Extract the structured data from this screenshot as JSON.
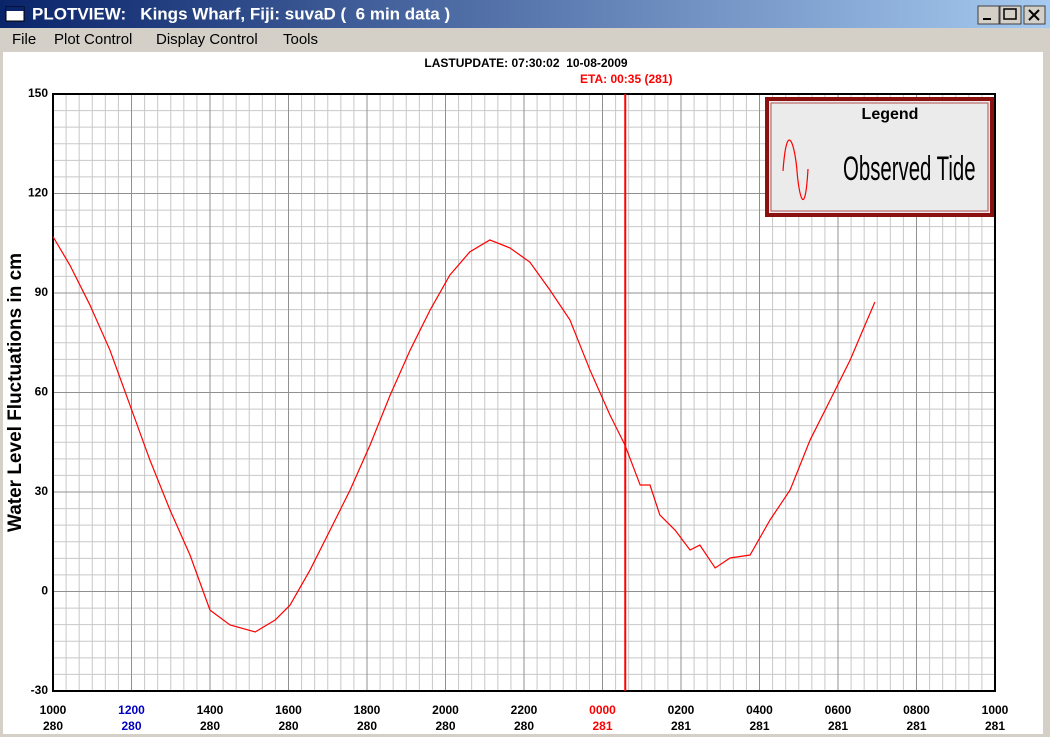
{
  "window": {
    "title": "PLOTVIEW:   Kings Wharf, Fiji: suvaD (  6 min data )"
  },
  "menu": [
    "File",
    "Plot Control",
    "Display Control",
    "Tools"
  ],
  "chart_data": {
    "type": "line",
    "subtitle": "LASTUPDATE: 07:30:02  10-08-2009",
    "ylabel": "Water Level Fluctuations in cm",
    "annotations": [
      {
        "label": "ETA: 00:35 (281)",
        "x": 24.58,
        "color": "#ff0000"
      }
    ],
    "legend_title": "Legend",
    "legend": "upper right",
    "grid": true,
    "minor_grid": {
      "x": 6,
      "y": 6
    },
    "x": [
      10,
      10.43,
      10.94,
      11.45,
      11.96,
      12.47,
      12.98,
      13.49,
      14.0,
      14.51,
      15.15,
      15.66,
      16.04,
      16.55,
      17.06,
      17.57,
      18.08,
      18.59,
      19.1,
      19.61,
      20.11,
      20.62,
      21.13,
      21.64,
      22.15,
      22.66,
      23.17,
      23.68,
      24.19,
      24.57,
      24.96,
      25.21,
      25.46,
      25.85,
      26.23,
      26.48,
      26.87,
      27.25,
      27.76,
      28.27,
      28.78,
      29.29,
      29.8,
      30.31,
      30.69,
      30.94
    ],
    "series": [
      {
        "name": "Observed Tide",
        "color": "#ff0000",
        "values": [
          107,
          98.4,
          86.4,
          72.8,
          56.2,
          39.6,
          24.6,
          11.0,
          -5.6,
          -10.1,
          -12.2,
          -8.6,
          -4.1,
          6.5,
          18.5,
          30.6,
          44.2,
          59.2,
          72.8,
          84.9,
          95.4,
          102.4,
          106.0,
          103.6,
          99.3,
          90.9,
          81.9,
          66.8,
          53.2,
          44.2,
          32.1,
          32.1,
          23.1,
          18.5,
          12.5,
          14.0,
          7.1,
          10.1,
          11.0,
          21.6,
          30.6,
          45.7,
          57.7,
          69.8,
          80.4,
          87.3
        ]
      }
    ],
    "xlim": [
      10,
      34
    ],
    "xticks": [
      {
        "value": 10,
        "label": "1000",
        "day": "280"
      },
      {
        "value": 12,
        "label": "1200",
        "day": "280",
        "color": "#0000c0"
      },
      {
        "value": 14,
        "label": "1400",
        "day": "280"
      },
      {
        "value": 16,
        "label": "1600",
        "day": "280"
      },
      {
        "value": 18,
        "label": "1800",
        "day": "280"
      },
      {
        "value": 20,
        "label": "2000",
        "day": "280"
      },
      {
        "value": 22,
        "label": "2200",
        "day": "280"
      },
      {
        "value": 24,
        "label": "0000",
        "day": "281",
        "color": "#ff0000"
      },
      {
        "value": 26,
        "label": "0200",
        "day": "281"
      },
      {
        "value": 28,
        "label": "0400",
        "day": "281"
      },
      {
        "value": 30,
        "label": "0600",
        "day": "281"
      },
      {
        "value": 32,
        "label": "0800",
        "day": "281"
      },
      {
        "value": 34,
        "label": "1000",
        "day": "281"
      }
    ],
    "ylim": [
      -30,
      150
    ],
    "yticks": [
      -30,
      0,
      30,
      60,
      90,
      120,
      150
    ]
  }
}
